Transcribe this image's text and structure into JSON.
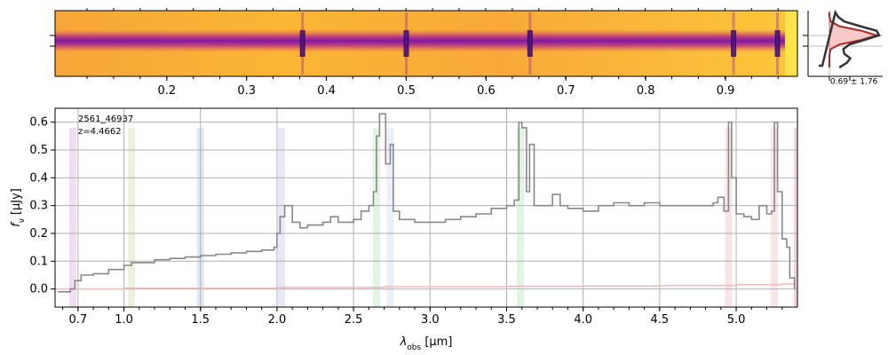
{
  "chart_data": [
    {
      "type": "heatmap",
      "panel": "2d-spectrum",
      "colormap": "plasma",
      "wavelength_axis_ticks": [
        "0.2",
        "0.3",
        "0.4",
        "0.5",
        "0.6",
        "0.7",
        "0.8",
        "0.9"
      ],
      "wavelength_axis_tick_values": [
        0.2,
        0.3,
        0.4,
        0.5,
        0.6,
        0.7,
        0.8,
        0.9
      ],
      "wavelength_axis_range": [
        0.06,
        0.99
      ],
      "emission_line_columns": [
        0.37,
        0.5,
        0.655,
        0.91,
        0.965
      ]
    },
    {
      "type": "line",
      "panel": "profile",
      "annotation": "0.69 ± 1.76",
      "colors": {
        "profile": "#333333",
        "fit": "#a82626",
        "fit_fill": "#f7c9c9"
      },
      "profile_values": [
        0.12,
        0.18,
        0.3,
        0.62,
        0.95,
        1.0,
        0.7,
        0.4,
        0.28,
        0.3,
        0.42,
        0.35,
        0.2
      ]
    },
    {
      "type": "line",
      "panel": "1d-spectrum",
      "title": "2561_46937",
      "subtitle": "z=4.4662",
      "xlabel": "λobs [μm]",
      "xlabel_main": "λ",
      "xlabel_sub": "obs",
      "xlabel_unit": " [μm]",
      "ylabel": "fν [μJy]",
      "ylabel_main": "f",
      "ylabel_sub": "ν",
      "ylabel_unit": " [μJy]",
      "xlim": [
        0.55,
        5.4
      ],
      "ylim": [
        -0.065,
        0.65
      ],
      "grid": true,
      "x_tick_labels": [
        "0.7",
        "1.0",
        "1.5",
        "2.0",
        "2.5",
        "3.0",
        "3.5",
        "4.0",
        "4.5",
        "5.0"
      ],
      "x_tick_values": [
        0.7,
        1.0,
        1.5,
        2.0,
        2.5,
        3.0,
        3.5,
        4.0,
        4.5,
        5.0
      ],
      "y_tick_labels": [
        "0.0",
        "0.1",
        "0.2",
        "0.3",
        "0.4",
        "0.5",
        "0.6"
      ],
      "y_tick_values": [
        0.0,
        0.1,
        0.2,
        0.3,
        0.4,
        0.5,
        0.6
      ],
      "colors": {
        "flux": "#888888",
        "error": "#f4b8b8"
      },
      "line_bands": [
        {
          "center": 0.665,
          "color": "#e7c6e1"
        },
        {
          "center": 1.05,
          "color": "#dfe8c4"
        },
        {
          "center": 1.5,
          "color": "#cdd9ea"
        },
        {
          "center": 2.03,
          "color": "#dcd6ee"
        },
        {
          "center": 2.65,
          "color": "#cfeed2"
        },
        {
          "center": 2.74,
          "color": "#dce8f3"
        },
        {
          "center": 3.59,
          "color": "#cfeed2"
        },
        {
          "center": 4.95,
          "color": "#f1d3d7"
        },
        {
          "center": 5.25,
          "color": "#f1d3d7"
        },
        {
          "center": 5.4,
          "color": "#f3b5bd"
        }
      ],
      "series": [
        {
          "name": "flux",
          "points": [
            [
              0.57,
              -0.01
            ],
            [
              0.62,
              -0.01
            ],
            [
              0.65,
              0.0
            ],
            [
              0.68,
              0.03
            ],
            [
              0.72,
              0.05
            ],
            [
              0.8,
              0.055
            ],
            [
              0.9,
              0.07
            ],
            [
              1.0,
              0.085
            ],
            [
              1.05,
              0.095
            ],
            [
              1.1,
              0.095
            ],
            [
              1.2,
              0.105
            ],
            [
              1.3,
              0.11
            ],
            [
              1.4,
              0.115
            ],
            [
              1.5,
              0.12
            ],
            [
              1.6,
              0.125
            ],
            [
              1.7,
              0.13
            ],
            [
              1.8,
              0.135
            ],
            [
              1.9,
              0.14
            ],
            [
              1.98,
              0.15
            ],
            [
              2.0,
              0.2
            ],
            [
              2.02,
              0.26
            ],
            [
              2.05,
              0.3
            ],
            [
              2.1,
              0.24
            ],
            [
              2.15,
              0.22
            ],
            [
              2.2,
              0.23
            ],
            [
              2.3,
              0.24
            ],
            [
              2.35,
              0.26
            ],
            [
              2.4,
              0.24
            ],
            [
              2.5,
              0.25
            ],
            [
              2.55,
              0.28
            ],
            [
              2.6,
              0.3
            ],
            [
              2.63,
              0.35
            ],
            [
              2.65,
              0.55
            ],
            [
              2.67,
              0.63
            ],
            [
              2.69,
              0.63
            ],
            [
              2.71,
              0.45
            ],
            [
              2.74,
              0.52
            ],
            [
              2.76,
              0.28
            ],
            [
              2.8,
              0.25
            ],
            [
              2.9,
              0.24
            ],
            [
              3.0,
              0.24
            ],
            [
              3.1,
              0.25
            ],
            [
              3.2,
              0.26
            ],
            [
              3.3,
              0.27
            ],
            [
              3.4,
              0.29
            ],
            [
              3.5,
              0.3
            ],
            [
              3.55,
              0.32
            ],
            [
              3.58,
              0.6
            ],
            [
              3.6,
              0.58
            ],
            [
              3.63,
              0.35
            ],
            [
              3.65,
              0.52
            ],
            [
              3.68,
              0.3
            ],
            [
              3.75,
              0.3
            ],
            [
              3.8,
              0.34
            ],
            [
              3.85,
              0.3
            ],
            [
              3.9,
              0.29
            ],
            [
              4.0,
              0.28
            ],
            [
              4.1,
              0.3
            ],
            [
              4.2,
              0.31
            ],
            [
              4.3,
              0.3
            ],
            [
              4.4,
              0.31
            ],
            [
              4.5,
              0.3
            ],
            [
              4.6,
              0.3
            ],
            [
              4.7,
              0.3
            ],
            [
              4.8,
              0.3
            ],
            [
              4.85,
              0.31
            ],
            [
              4.88,
              0.33
            ],
            [
              4.92,
              0.28
            ],
            [
              4.95,
              0.6
            ],
            [
              4.97,
              0.4
            ],
            [
              5.0,
              0.27
            ],
            [
              5.05,
              0.26
            ],
            [
              5.1,
              0.25
            ],
            [
              5.15,
              0.3
            ],
            [
              5.2,
              0.27
            ],
            [
              5.23,
              0.28
            ],
            [
              5.25,
              0.6
            ],
            [
              5.27,
              0.35
            ],
            [
              5.3,
              0.18
            ],
            [
              5.33,
              0.15
            ],
            [
              5.35,
              0.04
            ],
            [
              5.38,
              0.0
            ]
          ]
        },
        {
          "name": "error",
          "points": [
            [
              0.57,
              0.0
            ],
            [
              1.0,
              0.003
            ],
            [
              2.0,
              0.006
            ],
            [
              2.7,
              0.008
            ],
            [
              3.5,
              0.01
            ],
            [
              4.0,
              0.011
            ],
            [
              4.5,
              0.013
            ],
            [
              5.0,
              0.016
            ],
            [
              5.3,
              0.018
            ],
            [
              5.38,
              0.02
            ]
          ]
        }
      ]
    }
  ]
}
